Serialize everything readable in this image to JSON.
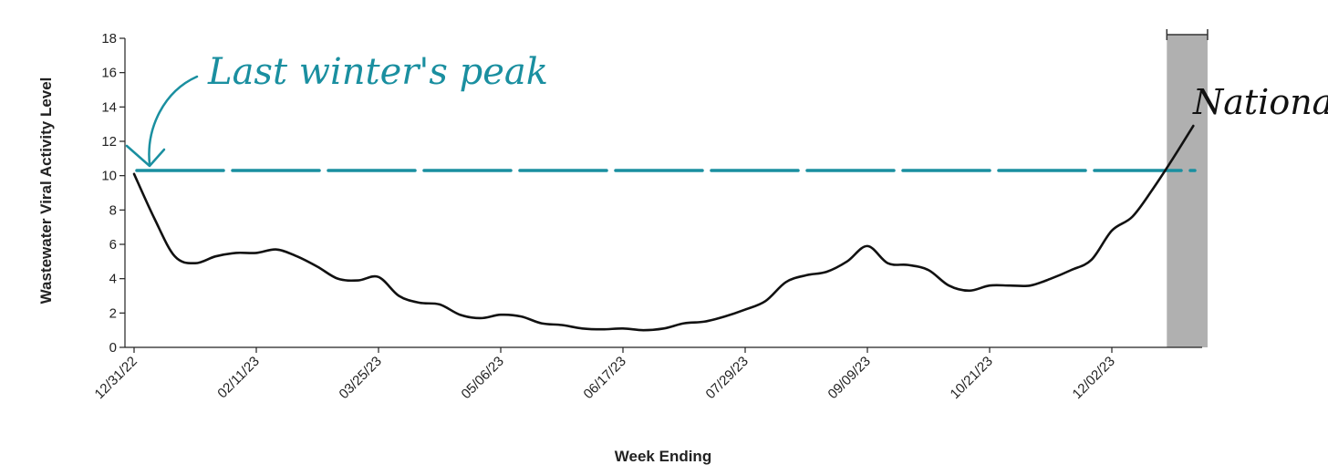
{
  "chart_data": {
    "type": "line",
    "xlabel": "Week Ending",
    "ylabel": "Wastewater Viral Activity Level",
    "ylim": [
      0,
      18
    ],
    "yticks": [
      0,
      2,
      4,
      6,
      8,
      10,
      12,
      14,
      16,
      18
    ],
    "xtick_labels": [
      "12/31/22",
      "02/11/23",
      "03/25/23",
      "05/06/23",
      "06/17/23",
      "07/29/23",
      "09/09/23",
      "10/21/23",
      "12/02/23"
    ],
    "grid": false,
    "series": [
      {
        "name": "National",
        "color": "#111111",
        "weeks": [
          0,
          1,
          2,
          3,
          4,
          5,
          6,
          7,
          8,
          9,
          10,
          11,
          12,
          13,
          14,
          15,
          16,
          17,
          18,
          19,
          20,
          21,
          22,
          23,
          24,
          25,
          26,
          27,
          28,
          29,
          30,
          31,
          32,
          33,
          34,
          35,
          36,
          37,
          38,
          39,
          40,
          41,
          42,
          43,
          44,
          45,
          46,
          47,
          48,
          49,
          50,
          51,
          52
        ],
        "values": [
          10.1,
          7.5,
          5.3,
          4.9,
          5.3,
          5.5,
          5.5,
          5.7,
          5.3,
          4.7,
          4.0,
          3.9,
          4.1,
          3.0,
          2.6,
          2.5,
          1.9,
          1.7,
          1.9,
          1.8,
          1.4,
          1.3,
          1.1,
          1.05,
          1.1,
          1.0,
          1.1,
          1.4,
          1.5,
          1.8,
          2.2,
          2.7,
          3.8,
          4.2,
          4.4,
          5.0,
          5.9,
          4.9,
          4.8,
          4.5,
          3.6,
          3.3,
          3.6,
          3.6,
          3.6,
          4.0,
          4.5,
          5.1,
          6.8,
          7.6,
          9.2,
          11.0,
          12.9
        ]
      }
    ],
    "reference_line": {
      "label": "Last winter's peak",
      "value": 10.3,
      "color": "#1a8fa0"
    },
    "highlight": {
      "start_week": 50.7,
      "end_week": 52.7,
      "color": "#b0b0b0"
    },
    "annotations": {
      "peak_label": "Last winter's peak",
      "series_label": "National"
    }
  }
}
